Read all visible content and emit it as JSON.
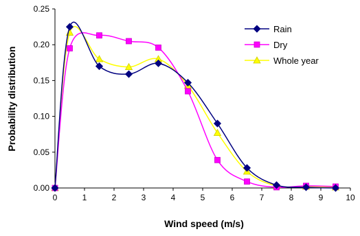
{
  "chart_data": {
    "type": "line",
    "xlabel": "Wind speed (m/s)",
    "ylabel": "Probability distribution",
    "xlim": [
      0,
      10
    ],
    "ylim": [
      0,
      0.25
    ],
    "x_ticks": [
      "0",
      "1",
      "2",
      "3",
      "4",
      "5",
      "6",
      "7",
      "8",
      "9",
      "10"
    ],
    "y_ticks": [
      "0.00",
      "0.05",
      "0.10",
      "0.15",
      "0.20",
      "0.25"
    ],
    "grid": false,
    "legend_position": "top-right",
    "series": [
      {
        "name": "Rain",
        "color": "#000080",
        "marker": "diamond",
        "x": [
          0,
          0.5,
          1.5,
          2.5,
          3.5,
          4.5,
          5.5,
          6.5,
          7.5,
          8.5,
          9.5
        ],
        "y": [
          0.0,
          0.225,
          0.17,
          0.159,
          0.174,
          0.147,
          0.09,
          0.028,
          0.004,
          0.001,
          0.0
        ]
      },
      {
        "name": "Dry",
        "color": "#ff00ff",
        "marker": "square",
        "x": [
          0,
          0.5,
          1.5,
          2.5,
          3.5,
          4.5,
          5.5,
          6.5,
          7.5,
          8.5,
          9.5
        ],
        "y": [
          0.0,
          0.195,
          0.213,
          0.205,
          0.196,
          0.135,
          0.039,
          0.009,
          0.001,
          0.003,
          0.002
        ]
      },
      {
        "name": "Whole year",
        "color": "#ffff00",
        "marker": "triangle",
        "x": [
          0,
          0.5,
          1.5,
          2.5,
          3.5,
          4.5,
          5.5,
          6.5,
          7.5,
          8.5,
          9.5
        ],
        "y": [
          0.0,
          0.217,
          0.18,
          0.169,
          0.18,
          0.143,
          0.077,
          0.023,
          0.003,
          0.002,
          0.001
        ]
      }
    ]
  }
}
